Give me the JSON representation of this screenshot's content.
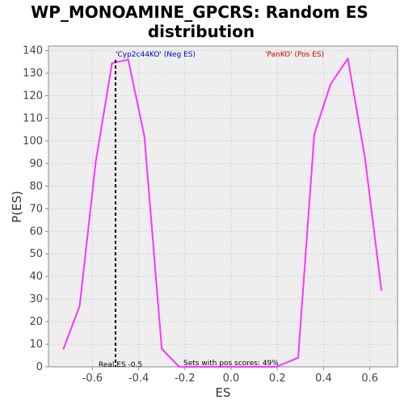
{
  "chart_data": {
    "type": "line",
    "title_line1": "WP_MONOAMINE_GPCRS: Random ES",
    "title_line2": "distribution",
    "xlabel": "ES",
    "ylabel": "P(ES)",
    "xlim": [
      -0.79,
      0.72
    ],
    "ylim": [
      0,
      142
    ],
    "x_ticks": [
      -0.6,
      -0.4,
      -0.2,
      0.0,
      0.2,
      0.4,
      0.6
    ],
    "x_tick_labels": [
      "-0.6",
      "-0.4",
      "-0.2",
      "0.0",
      "0.2",
      "0.4",
      "0.6"
    ],
    "y_ticks": [
      0,
      10,
      20,
      30,
      40,
      50,
      60,
      70,
      80,
      90,
      100,
      110,
      120,
      130,
      140
    ],
    "grid": true,
    "series": [
      {
        "color": "#ff33ff",
        "points": [
          [
            -0.725,
            8
          ],
          [
            -0.655,
            27
          ],
          [
            -0.585,
            91
          ],
          [
            -0.515,
            134.5
          ],
          [
            -0.445,
            136
          ],
          [
            -0.375,
            102
          ],
          [
            -0.3,
            8
          ],
          [
            -0.225,
            0
          ],
          [
            -0.155,
            0
          ],
          [
            -0.085,
            0
          ],
          [
            -0.015,
            0
          ],
          [
            0.055,
            0
          ],
          [
            0.125,
            0
          ],
          [
            0.195,
            0
          ],
          [
            0.29,
            4
          ],
          [
            0.36,
            103
          ],
          [
            0.43,
            125
          ],
          [
            0.505,
            136.5
          ],
          [
            0.58,
            92
          ],
          [
            0.65,
            34
          ]
        ]
      }
    ],
    "real_es": -0.5,
    "annotations": {
      "neg_label": "'Cyp2c44KO' (Neg ES)",
      "neg_color": "#0000cc",
      "pos_label": "'PanKO' (Pos ES)",
      "pos_color": "#cc0000",
      "real_es_label": "Real ES -0.5",
      "pos_scores_label": "Sets with pos scores: 49%"
    }
  }
}
